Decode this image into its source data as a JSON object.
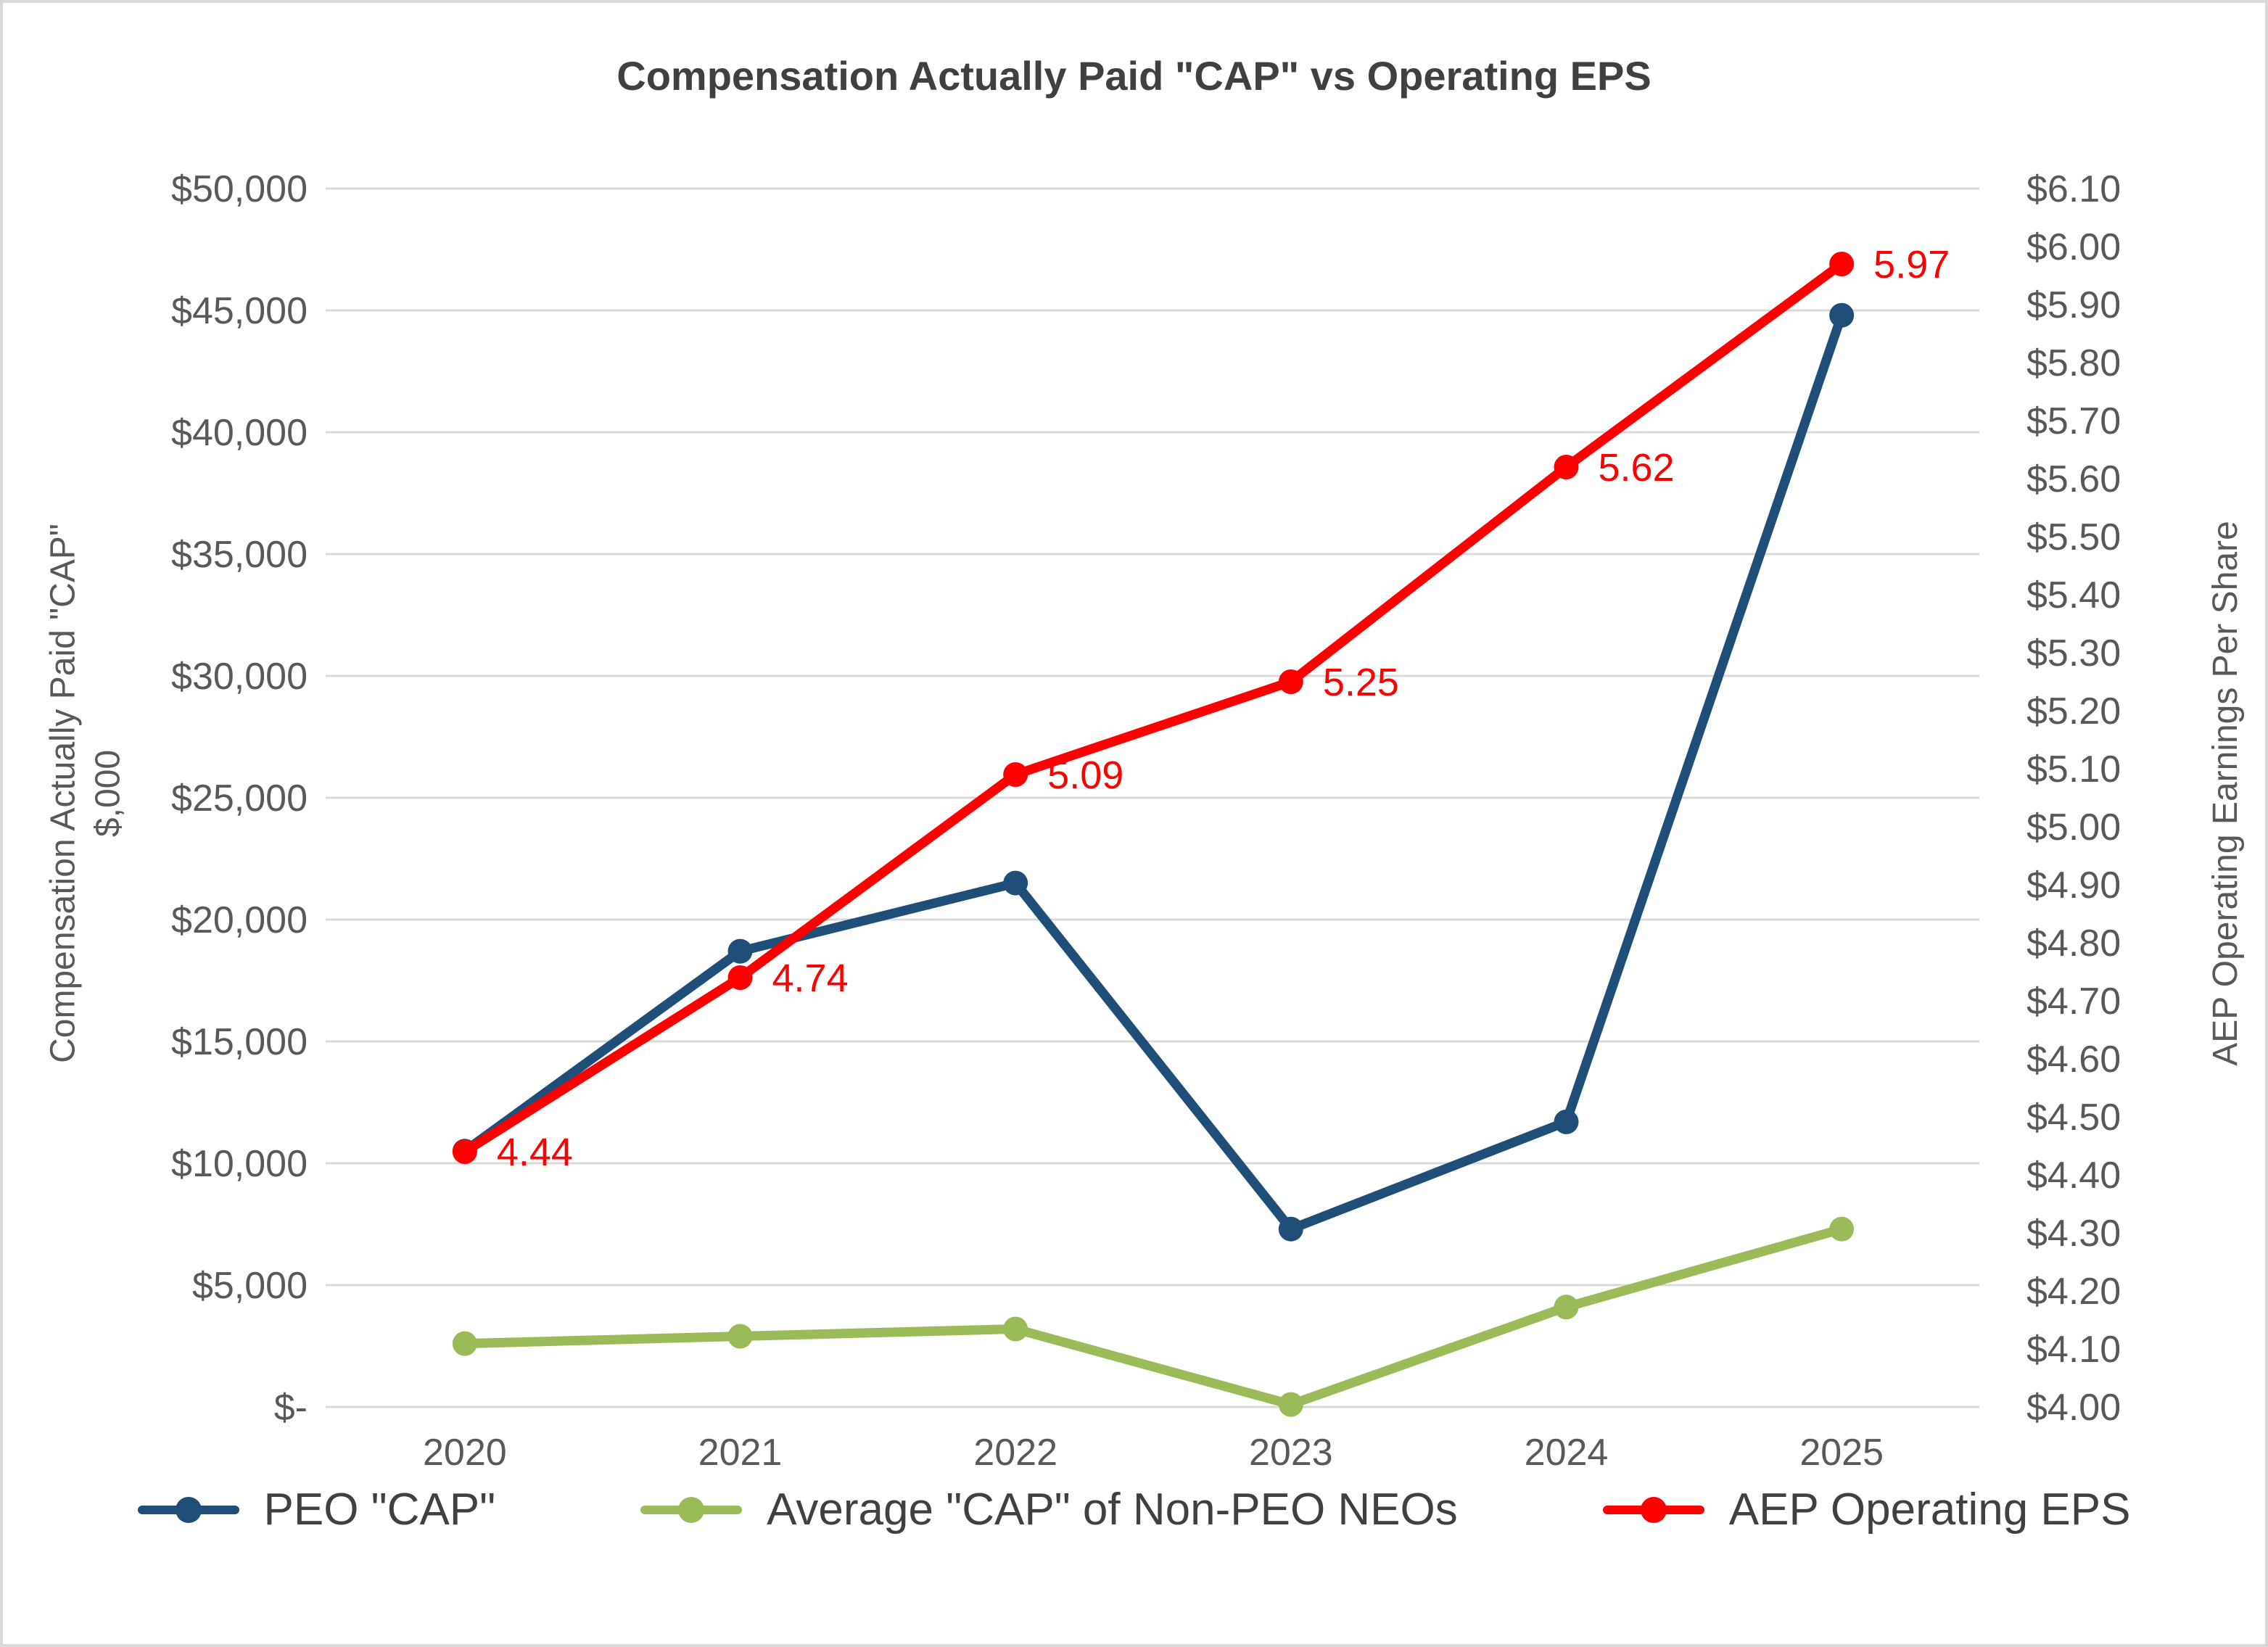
{
  "title": "Compensation Actually Paid \"CAP\" vs Operating EPS",
  "left_axis": {
    "title_line1": "Compensation Actually Paid \"CAP\"",
    "title_line2": "$,000",
    "ticks": [
      "$50,000",
      "$45,000",
      "$40,000",
      "$35,000",
      "$30,000",
      "$25,000",
      "$20,000",
      "$15,000",
      "$10,000",
      "$5,000",
      "$-"
    ]
  },
  "right_axis": {
    "title": "AEP Operating Earnings Per Share",
    "ticks": [
      "$6.10",
      "$6.00",
      "$5.90",
      "$5.80",
      "$5.70",
      "$5.60",
      "$5.50",
      "$5.40",
      "$5.30",
      "$5.20",
      "$5.10",
      "$5.00",
      "$4.90",
      "$4.80",
      "$4.70",
      "$4.60",
      "$4.50",
      "$4.40",
      "$4.30",
      "$4.20",
      "$4.10",
      "$4.00"
    ]
  },
  "chart_data": {
    "type": "line",
    "categories": [
      "2020",
      "2021",
      "2022",
      "2023",
      "2024",
      "2025"
    ],
    "series": [
      {
        "name": "PEO \"CAP\"",
        "axis": "left",
        "color": "#1F4E79",
        "values": [
          10500,
          18700,
          21500,
          7300,
          11700,
          44800
        ]
      },
      {
        "name": "Average \"CAP\" of Non-PEO NEOs",
        "axis": "left",
        "color": "#9BBB59",
        "values": [
          2600,
          2900,
          3200,
          100,
          4100,
          7300
        ]
      },
      {
        "name": "AEP Operating EPS",
        "axis": "right",
        "color": "#FF0000",
        "values": [
          4.44,
          4.74,
          5.09,
          5.25,
          5.62,
          5.97
        ],
        "data_labels": [
          "4.44",
          "4.74",
          "5.09",
          "5.25",
          "5.62",
          "5.97"
        ]
      }
    ],
    "left_axis_range": [
      0,
      50000
    ],
    "right_axis_range": [
      4.0,
      6.1
    ],
    "gridlines": true,
    "gridline_color": "#D9D9D9",
    "legend_position": "bottom"
  }
}
